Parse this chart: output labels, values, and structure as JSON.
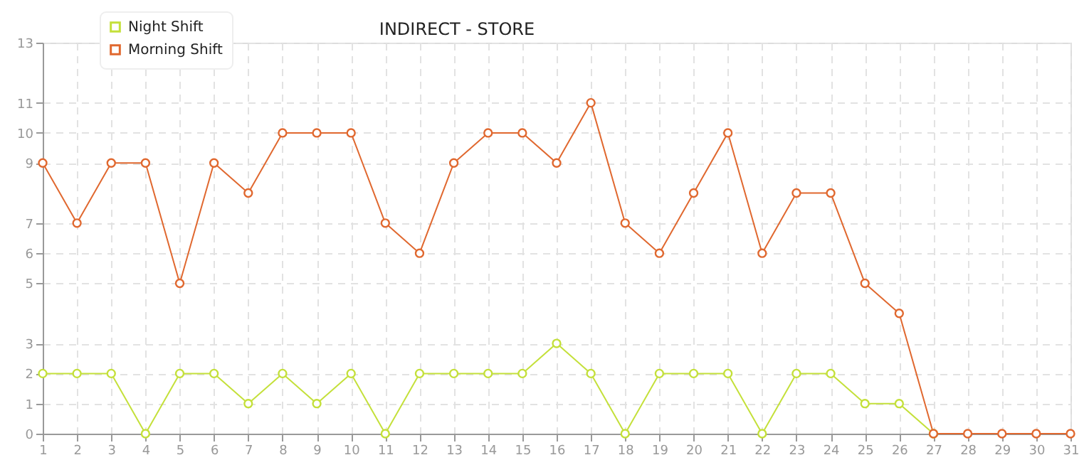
{
  "chart_data": {
    "type": "line",
    "title": "INDIRECT - STORE",
    "x": [
      1,
      2,
      3,
      4,
      5,
      6,
      7,
      8,
      9,
      10,
      11,
      12,
      13,
      14,
      15,
      16,
      17,
      18,
      19,
      20,
      21,
      22,
      23,
      24,
      25,
      26,
      27,
      28,
      29,
      30,
      31
    ],
    "series": [
      {
        "name": "Night Shift",
        "color": "#c4e03a",
        "values": [
          2,
          2,
          2,
          0,
          2,
          2,
          1,
          2,
          1,
          2,
          0,
          2,
          2,
          2,
          2,
          3,
          2,
          0,
          2,
          2,
          2,
          0,
          2,
          2,
          1,
          1,
          0,
          null,
          null,
          null,
          null
        ]
      },
      {
        "name": "Morning Shift",
        "color": "#e0682f",
        "values": [
          9,
          7,
          9,
          9,
          5,
          9,
          8,
          10,
          10,
          10,
          7,
          6,
          9,
          10,
          10,
          9,
          11,
          7,
          6,
          8,
          10,
          6,
          8,
          8,
          5,
          4,
          0,
          0,
          0,
          0,
          0
        ]
      }
    ],
    "xlim": [
      1,
      31
    ],
    "xticks": [
      1,
      2,
      3,
      4,
      5,
      6,
      7,
      8,
      9,
      10,
      11,
      12,
      13,
      14,
      15,
      16,
      17,
      18,
      19,
      20,
      21,
      22,
      23,
      24,
      25,
      26,
      27,
      28,
      29,
      30,
      31
    ],
    "ylim": [
      0,
      13
    ],
    "yticks": [
      0,
      1,
      2,
      3,
      5,
      6,
      7,
      9,
      10,
      11,
      13
    ],
    "grid": true,
    "legend": "top left",
    "marker": "circle",
    "line_style": "solid"
  }
}
